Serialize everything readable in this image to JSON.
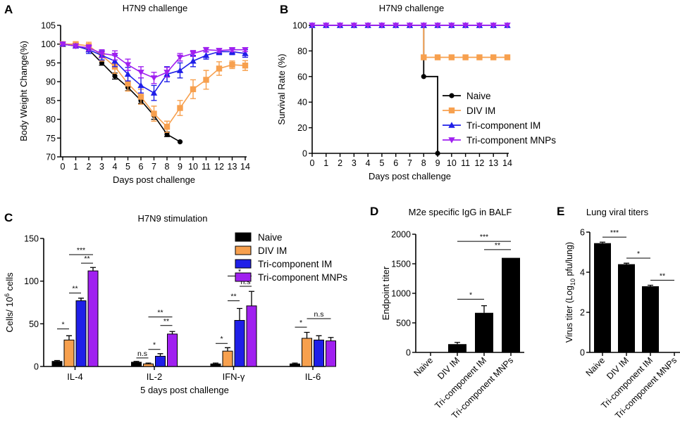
{
  "panels": {
    "A": {
      "letter": "A",
      "title": "H7N9 challenge"
    },
    "B": {
      "letter": "B",
      "title": "H7N9 challenge"
    },
    "C": {
      "letter": "C",
      "title": "H7N9 stimulation"
    },
    "D": {
      "letter": "D",
      "title": "M2e specific IgG in BALF"
    },
    "E": {
      "letter": "E",
      "title": "Lung viral titers"
    }
  },
  "groups": [
    "Naive",
    "DIV IM",
    "Tri-component IM",
    "Tri-component MNPs"
  ],
  "colors": {
    "Naive": "#000000",
    "DIV IM": "#f7a04e",
    "Tri-component IM": "#1f1fe8",
    "Tri-component MNPs": "#a020f0"
  },
  "chart_data": [
    {
      "id": "A",
      "type": "line",
      "title": "H7N9 challenge",
      "xlabel": "Days post challenge",
      "ylabel": "Body Weight Change(%)",
      "xlim": [
        0,
        14
      ],
      "ylim": [
        70,
        105
      ],
      "xticks": [
        0,
        1,
        2,
        3,
        4,
        5,
        6,
        7,
        8,
        9,
        10,
        11,
        12,
        13,
        14
      ],
      "yticks": [
        70,
        75,
        80,
        85,
        90,
        95,
        100,
        105
      ],
      "series": [
        {
          "name": "Naive",
          "x": [
            0,
            1,
            2,
            3,
            4,
            5,
            6,
            7,
            8,
            9
          ],
          "y": [
            100,
            99.5,
            98.5,
            95,
            91.5,
            88.5,
            85,
            81,
            76,
            74
          ],
          "err": [
            0.3,
            0.4,
            0.5,
            0.6,
            0.8,
            0.9,
            0.8,
            1,
            0.6,
            0
          ]
        },
        {
          "name": "DIV IM",
          "x": [
            0,
            1,
            2,
            3,
            4,
            5,
            6,
            7,
            8,
            9,
            10,
            11,
            12,
            13,
            14
          ],
          "y": [
            100,
            100,
            99.5,
            97,
            94,
            89.5,
            86,
            81.5,
            78,
            83,
            88,
            90.5,
            93.5,
            94.5,
            94.3
          ],
          "err": [
            0.3,
            0.5,
            1,
            1.5,
            1.8,
            2,
            2,
            2,
            1.5,
            2,
            2.5,
            2.5,
            1.8,
            1,
            1.3
          ]
        },
        {
          "name": "Tri-component IM",
          "x": [
            0,
            1,
            2,
            3,
            4,
            5,
            6,
            7,
            8,
            9,
            10,
            11,
            12,
            13,
            14
          ],
          "y": [
            100,
            99.5,
            98.5,
            97,
            95.5,
            92,
            89,
            87,
            92,
            93,
            95.5,
            97,
            98,
            98,
            97.5
          ],
          "err": [
            0.3,
            0.5,
            1,
            1.2,
            1.5,
            1.8,
            2,
            2,
            2,
            2,
            1.5,
            1,
            0.8,
            0.8,
            1
          ]
        },
        {
          "name": "Tri-component MNPs",
          "x": [
            0,
            1,
            2,
            3,
            4,
            5,
            6,
            7,
            8,
            9,
            10,
            11,
            12,
            13,
            14
          ],
          "y": [
            100,
            99.5,
            99,
            97.5,
            97,
            94.5,
            92.5,
            91,
            92.5,
            96.5,
            97.5,
            98.5,
            98.3,
            98.5,
            98.5
          ],
          "err": [
            0.3,
            0.5,
            0.8,
            1,
            1.2,
            1.5,
            1.5,
            1.5,
            1.3,
            1,
            0.8,
            0.6,
            0.5,
            0.5,
            0.5
          ]
        }
      ]
    },
    {
      "id": "B",
      "type": "line",
      "title": "H7N9 challenge",
      "xlabel": "Days post challenge",
      "ylabel": "Survival Rate (%)",
      "xlim": [
        0,
        14
      ],
      "ylim": [
        0,
        100
      ],
      "xticks": [
        0,
        1,
        2,
        3,
        4,
        5,
        6,
        7,
        8,
        9,
        10,
        11,
        12,
        13,
        14
      ],
      "yticks": [
        0,
        20,
        40,
        60,
        80,
        100
      ],
      "legend": "bottom-right",
      "series": [
        {
          "name": "Naive",
          "x": [
            0,
            1,
            2,
            3,
            4,
            5,
            6,
            7,
            8,
            9
          ],
          "y": [
            100,
            100,
            100,
            100,
            100,
            100,
            100,
            100,
            60,
            0
          ]
        },
        {
          "name": "DIV IM",
          "x": [
            0,
            1,
            2,
            3,
            4,
            5,
            6,
            7,
            8,
            9,
            10,
            11,
            12,
            13,
            14
          ],
          "y": [
            100,
            100,
            100,
            100,
            100,
            100,
            100,
            100,
            75,
            75,
            75,
            75,
            75,
            75,
            75
          ]
        },
        {
          "name": "Tri-component IM",
          "x": [
            0,
            1,
            2,
            3,
            4,
            5,
            6,
            7,
            8,
            9,
            10,
            11,
            12,
            13,
            14
          ],
          "y": [
            100,
            100,
            100,
            100,
            100,
            100,
            100,
            100,
            100,
            100,
            100,
            100,
            100,
            100,
            100
          ]
        },
        {
          "name": "Tri-component MNPs",
          "x": [
            0,
            1,
            2,
            3,
            4,
            5,
            6,
            7,
            8,
            9,
            10,
            11,
            12,
            13,
            14
          ],
          "y": [
            100,
            100,
            100,
            100,
            100,
            100,
            100,
            100,
            100,
            100,
            100,
            100,
            100,
            100,
            100
          ]
        }
      ]
    },
    {
      "id": "C",
      "type": "bar",
      "title": "H7N9 stimulation",
      "xlabel": "5 days post challenge",
      "ylabel_main": "Cells/ 10",
      "ylabel_sup": "6",
      "ylabel_tail": " cells",
      "ylim": [
        0,
        150
      ],
      "yticks": [
        0,
        50,
        100,
        150
      ],
      "categories": [
        "IL-4",
        "IL-2",
        "IFN-γ",
        "IL-6"
      ],
      "legend": "top-right",
      "series": [
        {
          "name": "Naive",
          "values": [
            6,
            5,
            3,
            3
          ],
          "err": [
            1,
            1,
            1,
            1
          ]
        },
        {
          "name": "DIV IM",
          "values": [
            31,
            3,
            18,
            33
          ],
          "err": [
            5,
            1,
            4,
            7
          ]
        },
        {
          "name": "Tri-component IM",
          "values": [
            77,
            12,
            54,
            31
          ],
          "err": [
            3,
            3,
            14,
            5
          ]
        },
        {
          "name": "Tri-component MNPs",
          "values": [
            112,
            38,
            71,
            30
          ],
          "err": [
            4,
            3,
            17,
            4
          ]
        }
      ],
      "annotations": [
        {
          "cat": 0,
          "from": 0,
          "to": 1,
          "y": 44,
          "text": "*"
        },
        {
          "cat": 0,
          "from": 1,
          "to": 2,
          "y": 86,
          "text": "**"
        },
        {
          "cat": 0,
          "from": 2,
          "to": 3,
          "y": 121,
          "text": "**"
        },
        {
          "cat": 0,
          "from": 1,
          "to": 3,
          "y": 131,
          "text": "***"
        },
        {
          "cat": 1,
          "from": 0,
          "to": 1,
          "y": 10,
          "text": "n.s"
        },
        {
          "cat": 1,
          "from": 1,
          "to": 2,
          "y": 20,
          "text": "*"
        },
        {
          "cat": 1,
          "from": 2,
          "to": 3,
          "y": 48,
          "text": "**"
        },
        {
          "cat": 1,
          "from": 1,
          "to": 3,
          "y": 58,
          "text": "**"
        },
        {
          "cat": 2,
          "from": 0,
          "to": 1,
          "y": 27,
          "text": "*"
        },
        {
          "cat": 2,
          "from": 1,
          "to": 2,
          "y": 77,
          "text": "**"
        },
        {
          "cat": 2,
          "from": 2,
          "to": 3,
          "y": 94,
          "text": "n.s"
        },
        {
          "cat": 2,
          "from": 1,
          "to": 3,
          "y": 106,
          "text": "*"
        },
        {
          "cat": 3,
          "from": 0,
          "to": 1,
          "y": 46,
          "text": "*"
        },
        {
          "cat": 3,
          "from": 1,
          "to": 3,
          "y": 56,
          "text": "n.s"
        }
      ]
    },
    {
      "id": "D",
      "type": "bar",
      "title": "M2e specific IgG in BALF",
      "ylabel": "Endpoint titer",
      "ylim": [
        0,
        2000
      ],
      "yticks": [
        0,
        500,
        1000,
        1500,
        2000
      ],
      "categories": [
        "Naive",
        "DIV IM",
        "Tri-component IM",
        "Tri-component MNPs"
      ],
      "values": [
        0,
        140,
        670,
        1600
      ],
      "err": [
        0,
        30,
        120,
        0
      ],
      "annotations": [
        {
          "from": 1,
          "to": 2,
          "y": 900,
          "text": "*"
        },
        {
          "from": 2,
          "to": 3,
          "y": 1740,
          "text": "**"
        },
        {
          "from": 1,
          "to": 3,
          "y": 1880,
          "text": "***"
        }
      ]
    },
    {
      "id": "E",
      "type": "bar",
      "title": "Lung viral titers",
      "ylabel_pre": "Virus titer (Log",
      "ylabel_sub": "10",
      "ylabel_post": " pfu/lung)",
      "ylim": [
        0,
        6
      ],
      "yticks": [
        0,
        2,
        4,
        6
      ],
      "categories": [
        "Naive",
        "DIV IM",
        "Tri-component IM",
        "Tri-component MNPs"
      ],
      "values": [
        5.45,
        4.4,
        3.3,
        0
      ],
      "err": [
        0.05,
        0.05,
        0.05,
        0
      ],
      "annotations": [
        {
          "from": 0,
          "to": 1,
          "y": 5.75,
          "text": "***"
        },
        {
          "from": 1,
          "to": 2,
          "y": 4.7,
          "text": "*"
        },
        {
          "from": 2,
          "to": 3,
          "y": 3.6,
          "text": "**"
        }
      ]
    }
  ]
}
